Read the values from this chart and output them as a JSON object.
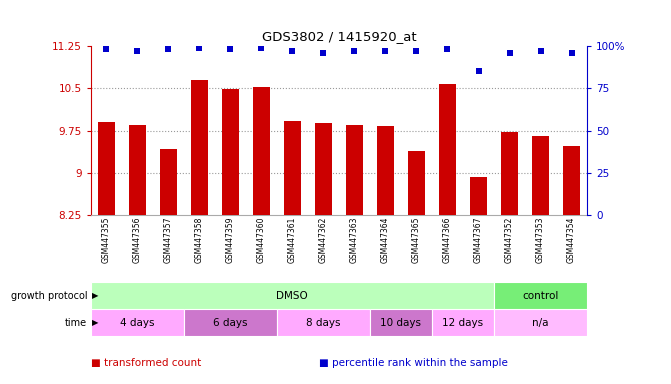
{
  "title": "GDS3802 / 1415920_at",
  "samples": [
    "GSM447355",
    "GSM447356",
    "GSM447357",
    "GSM447358",
    "GSM447359",
    "GSM447360",
    "GSM447361",
    "GSM447362",
    "GSM447363",
    "GSM447364",
    "GSM447365",
    "GSM447366",
    "GSM447367",
    "GSM447352",
    "GSM447353",
    "GSM447354"
  ],
  "transformed_count_all": [
    9.9,
    9.85,
    9.43,
    10.65,
    10.48,
    10.52,
    9.92,
    9.88,
    9.84,
    9.83,
    9.39,
    10.57,
    8.92,
    9.72,
    9.65,
    9.47
  ],
  "percentile": [
    98,
    97,
    98,
    99,
    98,
    99,
    97,
    96,
    97,
    97,
    97,
    98,
    85,
    96,
    97,
    96
  ],
  "ylim": [
    8.25,
    11.25
  ],
  "yticks": [
    8.25,
    9.0,
    9.75,
    10.5,
    11.25
  ],
  "yticklabels": [
    "8.25",
    "9",
    "9.75",
    "10.5",
    "11.25"
  ],
  "right_yticks": [
    0,
    25,
    50,
    75,
    100
  ],
  "right_yticklabels": [
    "0",
    "25",
    "50",
    "75",
    "100%"
  ],
  "bar_color": "#cc0000",
  "dot_color": "#0000cc",
  "bar_bottom": 8.25,
  "grid_dotted_at": [
    9.0,
    9.75,
    10.5
  ],
  "growth_protocol_groups": [
    {
      "label": "DMSO",
      "start": 0,
      "end": 13,
      "color": "#bbffbb"
    },
    {
      "label": "control",
      "start": 13,
      "end": 16,
      "color": "#77ee77"
    }
  ],
  "time_groups": [
    {
      "label": "4 days",
      "start": 0,
      "end": 3,
      "color": "#ffaaff"
    },
    {
      "label": "6 days",
      "start": 3,
      "end": 6,
      "color": "#cc77cc"
    },
    {
      "label": "8 days",
      "start": 6,
      "end": 9,
      "color": "#ffaaff"
    },
    {
      "label": "10 days",
      "start": 9,
      "end": 11,
      "color": "#cc77cc"
    },
    {
      "label": "12 days",
      "start": 11,
      "end": 13,
      "color": "#ffaaff"
    },
    {
      "label": "n/a",
      "start": 13,
      "end": 16,
      "color": "#ffbbff"
    }
  ],
  "legend_items": [
    {
      "label": "transformed count",
      "color": "#cc0000"
    },
    {
      "label": "percentile rank within the sample",
      "color": "#0000cc"
    }
  ],
  "right_axis_color": "#0000cc",
  "left_axis_color": "#cc0000",
  "background_color": "#ffffff"
}
